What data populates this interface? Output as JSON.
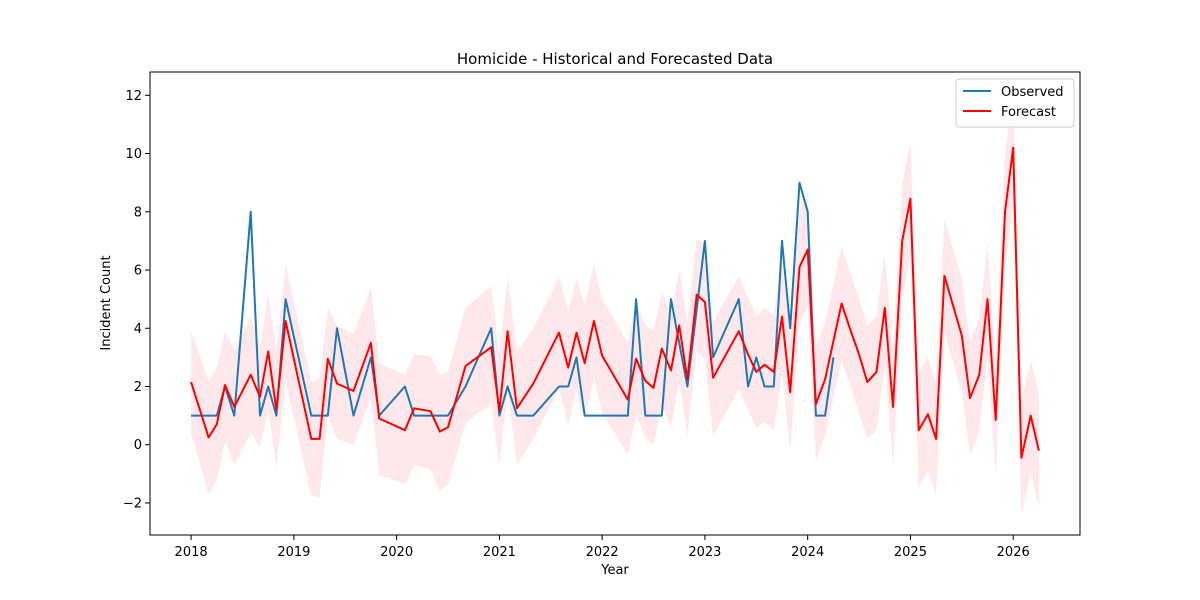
{
  "chart_data": {
    "type": "line",
    "title": "Homicide - Historical and Forecasted Data",
    "xlabel": "Year",
    "ylabel": "Incident Count",
    "xlim": [
      2017.6,
      2026.65
    ],
    "ylim": [
      -3.1,
      12.8
    ],
    "x_ticks": [
      2018,
      2019,
      2020,
      2021,
      2022,
      2023,
      2024,
      2025,
      2026
    ],
    "y_ticks": [
      -2,
      0,
      2,
      4,
      6,
      8,
      10,
      12
    ],
    "grid": false,
    "legend": "top-right",
    "series": [
      {
        "name": "Observed",
        "color": "#1f77b4",
        "points": [
          [
            2018.0,
            1
          ],
          [
            2018.25,
            1
          ],
          [
            2018.33,
            2
          ],
          [
            2018.42,
            1
          ],
          [
            2018.58,
            8
          ],
          [
            2018.67,
            1
          ],
          [
            2018.75,
            2
          ],
          [
            2018.83,
            1
          ],
          [
            2018.92,
            5
          ],
          [
            2019.17,
            1
          ],
          [
            2019.33,
            1
          ],
          [
            2019.42,
            4
          ],
          [
            2019.58,
            1
          ],
          [
            2019.75,
            3
          ],
          [
            2019.83,
            1
          ],
          [
            2020.08,
            2
          ],
          [
            2020.17,
            1
          ],
          [
            2020.5,
            1
          ],
          [
            2020.67,
            2
          ],
          [
            2020.92,
            4
          ],
          [
            2021.0,
            1
          ],
          [
            2021.08,
            2
          ],
          [
            2021.17,
            1
          ],
          [
            2021.33,
            1
          ],
          [
            2021.58,
            2
          ],
          [
            2021.67,
            2
          ],
          [
            2021.75,
            3
          ],
          [
            2021.83,
            1
          ],
          [
            2022.25,
            1
          ],
          [
            2022.33,
            5
          ],
          [
            2022.42,
            1
          ],
          [
            2022.58,
            1
          ],
          [
            2022.67,
            5
          ],
          [
            2022.83,
            2
          ],
          [
            2023.0,
            7
          ],
          [
            2023.08,
            3
          ],
          [
            2023.33,
            5
          ],
          [
            2023.42,
            2
          ],
          [
            2023.5,
            3
          ],
          [
            2023.58,
            2
          ],
          [
            2023.67,
            2
          ],
          [
            2023.75,
            7
          ],
          [
            2023.83,
            4
          ],
          [
            2023.92,
            9
          ],
          [
            2024.0,
            8
          ],
          [
            2024.08,
            1
          ],
          [
            2024.17,
            1
          ],
          [
            2024.25,
            3
          ]
        ]
      },
      {
        "name": "Forecast",
        "color": "#ff0000",
        "band_color": "rgba(255,182,193,0.32)",
        "points": [
          [
            2018.0,
            2.15,
            0.4,
            3.9
          ],
          [
            2018.17,
            0.25,
            -1.7,
            2.2
          ],
          [
            2018.25,
            0.7,
            -1.2,
            2.65
          ],
          [
            2018.33,
            2.05,
            0.1,
            3.9
          ],
          [
            2018.42,
            1.3,
            -0.7,
            3.2
          ],
          [
            2018.58,
            2.4,
            0.4,
            4.4
          ],
          [
            2018.67,
            1.65,
            -0.1,
            3.4
          ],
          [
            2018.75,
            3.2,
            1.2,
            5.2
          ],
          [
            2018.83,
            1.2,
            -0.8,
            3.2
          ],
          [
            2018.92,
            4.25,
            2.2,
            6.2
          ],
          [
            2019.17,
            0.2,
            -1.75,
            2.15
          ],
          [
            2019.25,
            0.2,
            -1.8,
            2.3
          ],
          [
            2019.33,
            2.95,
            1.0,
            4.7
          ],
          [
            2019.42,
            2.1,
            0.2,
            4.1
          ],
          [
            2019.58,
            1.85,
            0.0,
            3.8
          ],
          [
            2019.75,
            3.5,
            1.6,
            5.4
          ],
          [
            2019.83,
            0.9,
            -1.05,
            2.8
          ],
          [
            2020.08,
            0.5,
            -1.35,
            2.4
          ],
          [
            2020.17,
            1.25,
            -0.7,
            3.1
          ],
          [
            2020.33,
            1.15,
            -0.85,
            3.05
          ],
          [
            2020.42,
            0.45,
            -1.6,
            2.4
          ],
          [
            2020.5,
            0.6,
            -1.35,
            2.5
          ],
          [
            2020.67,
            2.7,
            0.75,
            4.7
          ],
          [
            2020.92,
            3.35,
            1.4,
            5.45
          ],
          [
            2021.0,
            1.15,
            -0.75,
            3.1
          ],
          [
            2021.08,
            3.9,
            1.9,
            5.8
          ],
          [
            2021.17,
            1.25,
            -0.7,
            3.2
          ],
          [
            2021.33,
            2.1,
            0.2,
            4.0
          ],
          [
            2021.58,
            3.85,
            1.9,
            5.75
          ],
          [
            2021.67,
            2.65,
            0.7,
            4.6
          ],
          [
            2021.75,
            3.85,
            1.85,
            5.7
          ],
          [
            2021.83,
            2.8,
            0.85,
            4.8
          ],
          [
            2021.92,
            4.25,
            2.3,
            6.2
          ],
          [
            2022.0,
            3.05,
            1.1,
            5.0
          ],
          [
            2022.25,
            1.55,
            -0.35,
            3.5
          ],
          [
            2022.33,
            2.95,
            1.0,
            4.9
          ],
          [
            2022.42,
            2.2,
            0.25,
            4.1
          ],
          [
            2022.5,
            1.95,
            0.0,
            3.9
          ],
          [
            2022.58,
            3.3,
            1.35,
            5.2
          ],
          [
            2022.67,
            2.55,
            0.6,
            4.5
          ],
          [
            2022.75,
            4.1,
            2.15,
            6.0
          ],
          [
            2022.83,
            2.25,
            0.3,
            4.2
          ],
          [
            2022.92,
            5.15,
            3.2,
            7.05
          ],
          [
            2023.0,
            4.9,
            2.95,
            6.9
          ],
          [
            2023.08,
            2.3,
            0.3,
            4.2
          ],
          [
            2023.33,
            3.9,
            1.9,
            5.8
          ],
          [
            2023.42,
            3.1,
            1.2,
            5.05
          ],
          [
            2023.5,
            2.5,
            0.55,
            4.4
          ],
          [
            2023.58,
            2.75,
            0.8,
            4.7
          ],
          [
            2023.67,
            2.5,
            0.5,
            4.45
          ],
          [
            2023.75,
            4.4,
            2.45,
            6.35
          ],
          [
            2023.83,
            1.8,
            -0.2,
            3.8
          ],
          [
            2023.92,
            6.1,
            4.15,
            8.0
          ],
          [
            2024.0,
            6.7,
            4.75,
            8.65
          ],
          [
            2024.08,
            1.4,
            -0.55,
            3.4
          ],
          [
            2024.17,
            2.25,
            0.3,
            4.2
          ],
          [
            2024.33,
            4.85,
            2.9,
            6.8
          ],
          [
            2024.42,
            3.9,
            1.95,
            5.85
          ],
          [
            2024.5,
            3.1,
            1.1,
            5.0
          ],
          [
            2024.58,
            2.15,
            0.2,
            4.1
          ],
          [
            2024.67,
            2.5,
            0.5,
            4.4
          ],
          [
            2024.75,
            4.7,
            2.75,
            6.6
          ],
          [
            2024.83,
            1.3,
            -0.7,
            3.25
          ],
          [
            2024.92,
            7.0,
            5.05,
            8.95
          ],
          [
            2025.0,
            8.45,
            6.5,
            10.4
          ],
          [
            2025.08,
            0.5,
            -1.45,
            2.45
          ],
          [
            2025.17,
            1.05,
            -0.9,
            3.0
          ],
          [
            2025.25,
            0.2,
            -1.7,
            2.15
          ],
          [
            2025.33,
            5.8,
            3.85,
            7.75
          ],
          [
            2025.5,
            3.75,
            1.8,
            5.7
          ],
          [
            2025.58,
            1.6,
            -0.35,
            3.55
          ],
          [
            2025.67,
            2.4,
            0.45,
            4.35
          ],
          [
            2025.75,
            5.0,
            3.05,
            6.95
          ],
          [
            2025.83,
            0.85,
            -1.1,
            2.8
          ],
          [
            2025.92,
            8.0,
            6.05,
            9.95
          ],
          [
            2026.0,
            10.2,
            8.25,
            12.15
          ],
          [
            2026.08,
            -0.45,
            -2.4,
            1.5
          ],
          [
            2026.17,
            1.0,
            -0.95,
            2.9
          ],
          [
            2026.25,
            -0.2,
            -2.15,
            1.75
          ]
        ]
      }
    ]
  }
}
